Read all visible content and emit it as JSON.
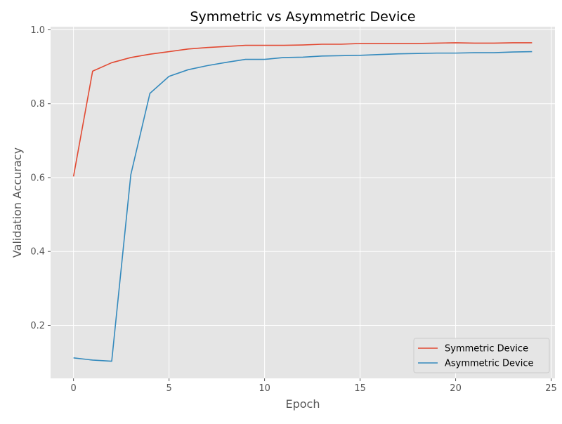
{
  "chart_data": {
    "type": "line",
    "title": "Symmetric vs Asymmetric Device",
    "xlabel": "Epoch",
    "ylabel": "Validation Accuracy",
    "xlim": [
      -1.2,
      25.2
    ],
    "ylim": [
      0.0565,
      1.0085
    ],
    "xticks": [
      0,
      5,
      10,
      15,
      20,
      25
    ],
    "yticks": [
      0.2,
      0.4,
      0.6,
      0.8,
      1.0
    ],
    "xtick_labels": [
      "0",
      "5",
      "10",
      "15",
      "20",
      "25"
    ],
    "ytick_labels": [
      "0.2",
      "0.4",
      "0.6",
      "0.8",
      "1.0"
    ],
    "grid": true,
    "legend_position": "lower-right",
    "background_color": "#e5e5e5",
    "grid_color": "#ffffff",
    "x": [
      0,
      1,
      2,
      3,
      4,
      5,
      6,
      7,
      8,
      9,
      10,
      11,
      12,
      13,
      14,
      15,
      16,
      17,
      18,
      19,
      20,
      21,
      22,
      23,
      24
    ],
    "series": [
      {
        "name": "Symmetric Device",
        "color": "#e24a33",
        "values": [
          0.603,
          0.888,
          0.911,
          0.925,
          0.934,
          0.941,
          0.948,
          0.952,
          0.955,
          0.958,
          0.958,
          0.958,
          0.959,
          0.961,
          0.961,
          0.963,
          0.963,
          0.963,
          0.963,
          0.964,
          0.965,
          0.964,
          0.964,
          0.965,
          0.965
        ]
      },
      {
        "name": "Asymmetric Device",
        "color": "#348abd",
        "values": [
          0.112,
          0.106,
          0.103,
          0.608,
          0.828,
          0.874,
          0.892,
          0.903,
          0.912,
          0.92,
          0.92,
          0.925,
          0.926,
          0.929,
          0.93,
          0.931,
          0.933,
          0.935,
          0.936,
          0.937,
          0.937,
          0.938,
          0.938,
          0.94,
          0.941
        ]
      }
    ]
  }
}
